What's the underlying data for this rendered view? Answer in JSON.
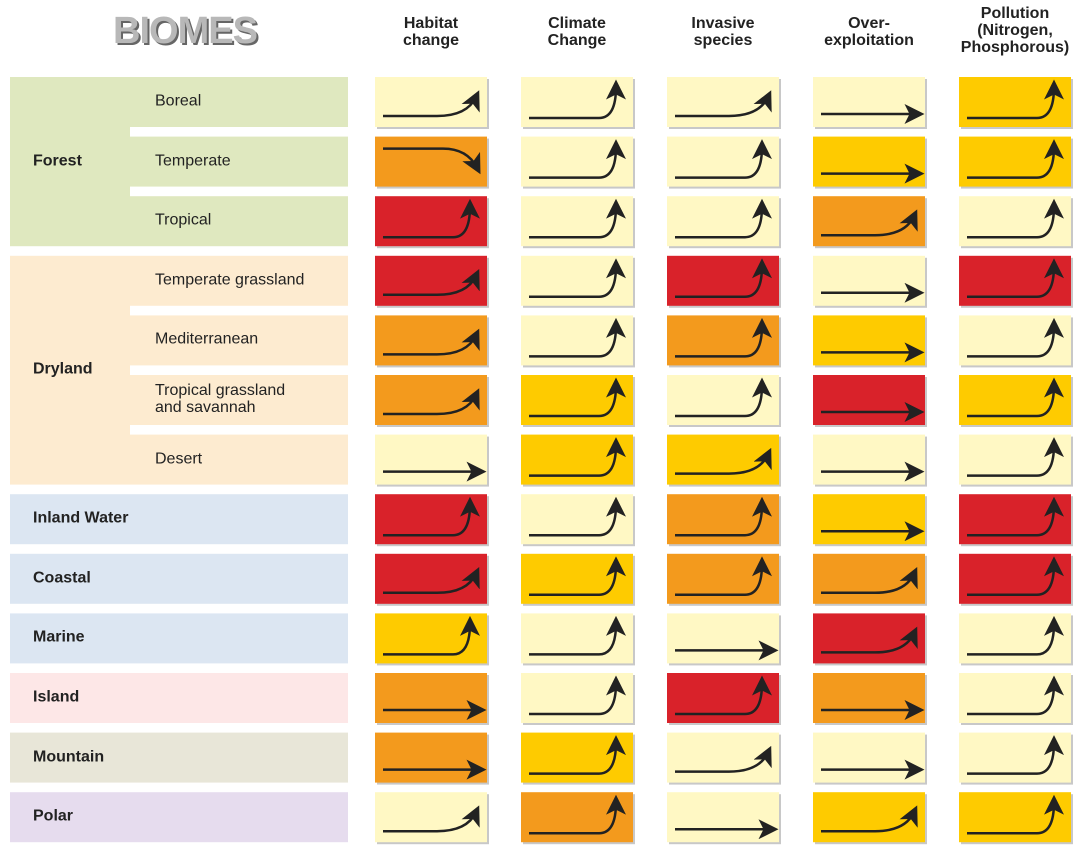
{
  "title": "BIOMES",
  "columns": [
    "Habitat\nchange",
    "Climate\nChange",
    "Invasive\nspecies",
    "Over-\nexploitation",
    "Pollution\n(Nitrogen,\nPhosphorous)"
  ],
  "groups": [
    {
      "label": "Forest",
      "color": "#dfe8bf",
      "rows": [
        {
          "label": "Boreal",
          "cells": [
            {
              "color": "#fff8c4",
              "trend": "up"
            },
            {
              "color": "#fff8c4",
              "trend": "steep"
            },
            {
              "color": "#fff8c4",
              "trend": "up"
            },
            {
              "color": "#fff8c4",
              "trend": "flat"
            },
            {
              "color": "#fecb00",
              "trend": "steep"
            }
          ]
        },
        {
          "label": "Temperate",
          "cells": [
            {
              "color": "#f39a1d",
              "trend": "down"
            },
            {
              "color": "#fff8c4",
              "trend": "steep"
            },
            {
              "color": "#fff8c4",
              "trend": "steep"
            },
            {
              "color": "#fecb00",
              "trend": "flat"
            },
            {
              "color": "#fecb00",
              "trend": "steep"
            }
          ]
        },
        {
          "label": "Tropical",
          "cells": [
            {
              "color": "#d9222a",
              "trend": "steep"
            },
            {
              "color": "#fff8c4",
              "trend": "steep"
            },
            {
              "color": "#fff8c4",
              "trend": "steep"
            },
            {
              "color": "#f39a1d",
              "trend": "up"
            },
            {
              "color": "#fff8c4",
              "trend": "steep"
            }
          ]
        }
      ]
    },
    {
      "label": "Dryland",
      "color": "#fdebd0",
      "rows": [
        {
          "label": "Temperate grassland",
          "cells": [
            {
              "color": "#d9222a",
              "trend": "up"
            },
            {
              "color": "#fff8c4",
              "trend": "steep"
            },
            {
              "color": "#d9222a",
              "trend": "steep"
            },
            {
              "color": "#fff8c4",
              "trend": "flat"
            },
            {
              "color": "#d9222a",
              "trend": "steep"
            }
          ]
        },
        {
          "label": "Mediterranean",
          "cells": [
            {
              "color": "#f39a1d",
              "trend": "up"
            },
            {
              "color": "#fff8c4",
              "trend": "steep"
            },
            {
              "color": "#f39a1d",
              "trend": "steep"
            },
            {
              "color": "#fecb00",
              "trend": "flat"
            },
            {
              "color": "#fff8c4",
              "trend": "steep"
            }
          ]
        },
        {
          "label": "Tropical grassland\nand savannah",
          "cells": [
            {
              "color": "#f39a1d",
              "trend": "up"
            },
            {
              "color": "#fecb00",
              "trend": "steep"
            },
            {
              "color": "#fff8c4",
              "trend": "steep"
            },
            {
              "color": "#d9222a",
              "trend": "flat"
            },
            {
              "color": "#fecb00",
              "trend": "steep"
            }
          ]
        },
        {
          "label": "Desert",
          "cells": [
            {
              "color": "#fff8c4",
              "trend": "flat"
            },
            {
              "color": "#fecb00",
              "trend": "steep"
            },
            {
              "color": "#fecb00",
              "trend": "up"
            },
            {
              "color": "#fff8c4",
              "trend": "flat"
            },
            {
              "color": "#fff8c4",
              "trend": "steep"
            }
          ]
        }
      ]
    },
    {
      "label": "Inland Water",
      "color": "#dce6f2",
      "rows": [
        {
          "cells": [
            {
              "color": "#d9222a",
              "trend": "steep"
            },
            {
              "color": "#fff8c4",
              "trend": "steep"
            },
            {
              "color": "#f39a1d",
              "trend": "steep"
            },
            {
              "color": "#fecb00",
              "trend": "flat"
            },
            {
              "color": "#d9222a",
              "trend": "steep"
            }
          ]
        }
      ]
    },
    {
      "label": "Coastal",
      "color": "#dce6f2",
      "rows": [
        {
          "cells": [
            {
              "color": "#d9222a",
              "trend": "up"
            },
            {
              "color": "#fecb00",
              "trend": "steep"
            },
            {
              "color": "#f39a1d",
              "trend": "steep"
            },
            {
              "color": "#f39a1d",
              "trend": "up"
            },
            {
              "color": "#d9222a",
              "trend": "steep"
            }
          ]
        }
      ]
    },
    {
      "label": "Marine",
      "color": "#dce6f2",
      "rows": [
        {
          "cells": [
            {
              "color": "#fecb00",
              "trend": "steep"
            },
            {
              "color": "#fff8c4",
              "trend": "steep"
            },
            {
              "color": "#fff8c4",
              "trend": "flat"
            },
            {
              "color": "#d9222a",
              "trend": "up"
            },
            {
              "color": "#fff8c4",
              "trend": "steep"
            }
          ]
        }
      ]
    },
    {
      "label": "Island",
      "color": "#fde7e7",
      "rows": [
        {
          "cells": [
            {
              "color": "#f39a1d",
              "trend": "flat"
            },
            {
              "color": "#fff8c4",
              "trend": "steep"
            },
            {
              "color": "#d9222a",
              "trend": "steep"
            },
            {
              "color": "#f39a1d",
              "trend": "flat"
            },
            {
              "color": "#fff8c4",
              "trend": "steep"
            }
          ]
        }
      ]
    },
    {
      "label": "Mountain",
      "color": "#e8e6d8",
      "rows": [
        {
          "cells": [
            {
              "color": "#f39a1d",
              "trend": "flat"
            },
            {
              "color": "#fecb00",
              "trend": "steep"
            },
            {
              "color": "#fff8c4",
              "trend": "up"
            },
            {
              "color": "#fff8c4",
              "trend": "flat"
            },
            {
              "color": "#fff8c4",
              "trend": "steep"
            }
          ]
        }
      ]
    },
    {
      "label": "Polar",
      "color": "#e6dcee",
      "rows": [
        {
          "cells": [
            {
              "color": "#fff8c4",
              "trend": "up"
            },
            {
              "color": "#f39a1d",
              "trend": "steep"
            },
            {
              "color": "#fff8c4",
              "trend": "flat"
            },
            {
              "color": "#fecb00",
              "trend": "up"
            },
            {
              "color": "#fecb00",
              "trend": "steep"
            }
          ]
        }
      ]
    }
  ]
}
